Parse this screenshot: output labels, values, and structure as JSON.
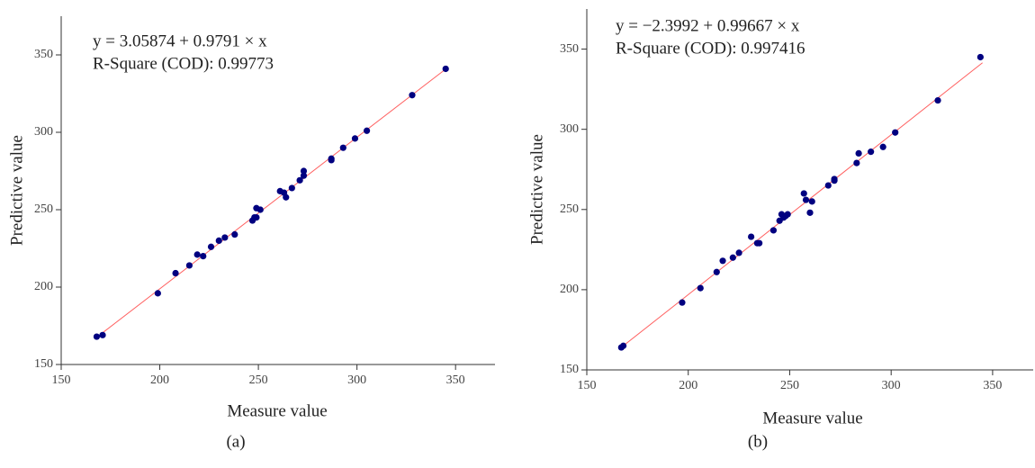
{
  "chart_data": [
    {
      "type": "scatter",
      "panel_label": "(a)",
      "annotations": [
        "y = 3.05874 + 0.9791 × x",
        "R-Square (COD): 0.99773"
      ],
      "xlabel": "Measure value",
      "ylabel": "Predictive value",
      "xlim": [
        150,
        370
      ],
      "ylim": [
        150,
        375
      ],
      "xticks": [
        150,
        200,
        250,
        300,
        350
      ],
      "yticks": [
        150,
        200,
        250,
        300,
        350
      ],
      "series": [
        {
          "color": "#000080",
          "x": [
            168,
            171,
            199,
            208,
            215,
            219,
            222,
            226,
            230,
            233,
            238,
            247,
            248,
            249,
            249,
            251,
            261,
            263,
            264,
            267,
            271,
            273,
            273,
            287,
            287,
            293,
            299,
            305,
            328,
            345
          ],
          "values": [
            168,
            169,
            196,
            209,
            214,
            221,
            220,
            226,
            230,
            232,
            234,
            243,
            245,
            245,
            251,
            250,
            262,
            261,
            258,
            264,
            269,
            272,
            275,
            282,
            283,
            290,
            296,
            301,
            324,
            341
          ]
        }
      ],
      "fit": {
        "color": "#ff6060",
        "intercept": 3.05874,
        "slope": 0.9791,
        "x": [
          170,
          345
        ]
      }
    },
    {
      "type": "scatter",
      "panel_label": "(b)",
      "annotations": [
        "y = −2.3992 + 0.99667 × x",
        "R-Square (COD): 0.997416"
      ],
      "xlabel": "Measure value",
      "ylabel": "Predictive value",
      "xlim": [
        150,
        370
      ],
      "ylim": [
        150,
        375
      ],
      "xticks": [
        150,
        200,
        250,
        300,
        350
      ],
      "yticks": [
        150,
        200,
        250,
        300,
        350
      ],
      "series": [
        {
          "color": "#000080",
          "x": [
            167,
            168,
            197,
            206,
            214,
            217,
            222,
            225,
            231,
            234,
            235,
            242,
            245,
            246,
            247,
            248,
            249,
            257,
            258,
            260,
            261,
            269,
            272,
            272,
            283,
            284,
            290,
            296,
            302,
            323,
            344
          ],
          "values": [
            164,
            165,
            192,
            201,
            211,
            218,
            220,
            223,
            233,
            229,
            229,
            237,
            243,
            247,
            245,
            246,
            247,
            260,
            256,
            248,
            255,
            265,
            268,
            269,
            279,
            285,
            286,
            289,
            298,
            318,
            345
          ]
        }
      ],
      "fit": {
        "color": "#ff6060",
        "intercept": -2.3992,
        "slope": 0.99667,
        "x": [
          167,
          345
        ]
      }
    }
  ]
}
